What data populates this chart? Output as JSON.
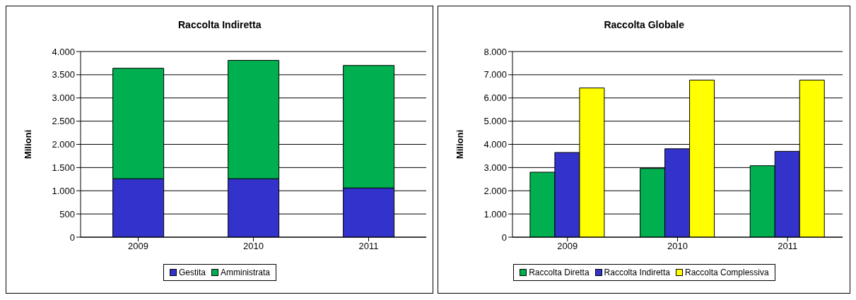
{
  "chart_data": [
    {
      "type": "bar",
      "title": "Raccolta Indiretta",
      "ylabel": "Milioni",
      "categories": [
        "2009",
        "2010",
        "2011"
      ],
      "stacked": true,
      "series": [
        {
          "name": "Gestita",
          "color": "#3333cc",
          "values": [
            1260,
            1260,
            1060
          ]
        },
        {
          "name": "Amministrata",
          "color": "#00b050",
          "values": [
            2380,
            2550,
            2640
          ]
        }
      ],
      "ylim": [
        0,
        4000
      ],
      "yticks": [
        {
          "value": 0,
          "label": "0"
        },
        {
          "value": 500,
          "label": "500"
        },
        {
          "value": 1000,
          "label": "1.000"
        },
        {
          "value": 1500,
          "label": "1.500"
        },
        {
          "value": 2000,
          "label": "2.000"
        },
        {
          "value": 2500,
          "label": "2.500"
        },
        {
          "value": 3000,
          "label": "3.000"
        },
        {
          "value": 3500,
          "label": "3.500"
        },
        {
          "value": 4000,
          "label": "4.000"
        }
      ],
      "grid": "y",
      "legend": "bottom"
    },
    {
      "type": "bar",
      "title": "Raccolta Globale",
      "ylabel": "Milioni",
      "categories": [
        "2009",
        "2010",
        "2011"
      ],
      "series": [
        {
          "name": "Raccolta Diretta",
          "color": "#00b050",
          "values": [
            2800,
            2960,
            3080
          ]
        },
        {
          "name": "Raccolta Indiretta",
          "color": "#3333cc",
          "values": [
            3650,
            3810,
            3700
          ]
        },
        {
          "name": "Raccolta Complessiva",
          "color": "#ffff00",
          "values": [
            6430,
            6770,
            6770
          ]
        }
      ],
      "ylim": [
        0,
        8000
      ],
      "yticks": [
        {
          "value": 0,
          "label": "0"
        },
        {
          "value": 1000,
          "label": "1.000"
        },
        {
          "value": 2000,
          "label": "2.000"
        },
        {
          "value": 3000,
          "label": "3.000"
        },
        {
          "value": 4000,
          "label": "4.000"
        },
        {
          "value": 5000,
          "label": "5.000"
        },
        {
          "value": 6000,
          "label": "6.000"
        },
        {
          "value": 7000,
          "label": "7.000"
        },
        {
          "value": 8000,
          "label": "8.000"
        }
      ],
      "grid": "y",
      "legend": "bottom"
    }
  ]
}
